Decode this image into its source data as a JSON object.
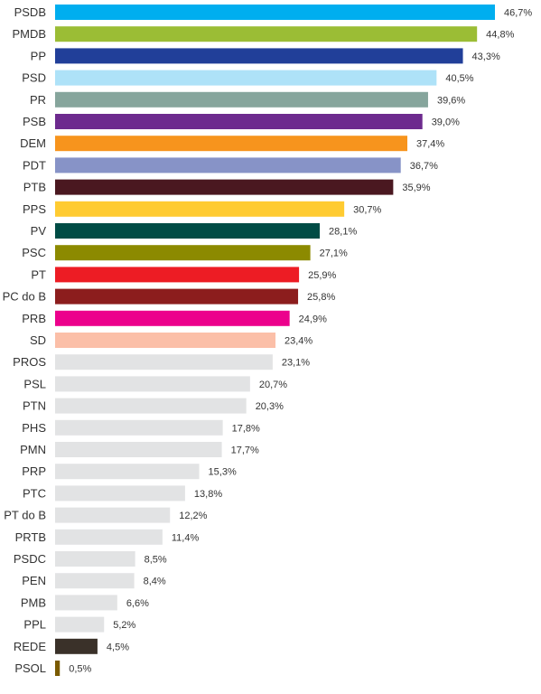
{
  "chart_data": {
    "type": "bar",
    "orientation": "horizontal",
    "title": "",
    "xlabel": "",
    "ylabel": "",
    "xlim": [
      0,
      46.7
    ],
    "grid": false,
    "legend": "none",
    "categories": [
      "PSDB",
      "PMDB",
      "PP",
      "PSD",
      "PR",
      "PSB",
      "DEM",
      "PDT",
      "PTB",
      "PPS",
      "PV",
      "PSC",
      "PT",
      "PC do B",
      "PRB",
      "SD",
      "PROS",
      "PSL",
      "PTN",
      "PHS",
      "PMN",
      "PRP",
      "PTC",
      "PT do B",
      "PRTB",
      "PSDC",
      "PEN",
      "PMB",
      "PPL",
      "REDE",
      "PSOL"
    ],
    "values": [
      46.7,
      44.8,
      43.3,
      40.5,
      39.6,
      39.0,
      37.4,
      36.7,
      35.9,
      30.7,
      28.1,
      27.1,
      25.9,
      25.8,
      24.9,
      23.4,
      23.1,
      20.7,
      20.3,
      17.8,
      17.7,
      15.3,
      13.8,
      12.2,
      11.4,
      8.5,
      8.4,
      6.6,
      5.2,
      4.5,
      0.5
    ],
    "value_labels": [
      "46,7%",
      "44,8%",
      "43,3%",
      "40,5%",
      "39,6%",
      "39,0%",
      "37,4%",
      "36,7%",
      "35,9%",
      "30,7%",
      "28,1%",
      "27,1%",
      "25,9%",
      "25,8%",
      "24,9%",
      "23,4%",
      "23,1%",
      "20,7%",
      "20,3%",
      "17,8%",
      "17,7%",
      "15,3%",
      "13,8%",
      "12,2%",
      "11,4%",
      "8,5%",
      "8,4%",
      "6,6%",
      "5,2%",
      "4,5%",
      "0,5%"
    ],
    "colors": [
      "#00aeef",
      "#9bbd35",
      "#213f99",
      "#aee2f8",
      "#86a59c",
      "#6d2a8e",
      "#f7941d",
      "#8793c7",
      "#4a1820",
      "#ffcb31",
      "#004c45",
      "#8c8a00",
      "#ed1c24",
      "#8c1d1d",
      "#ec008c",
      "#fbbfa8",
      "#e2e3e4",
      "#e2e3e4",
      "#e2e3e4",
      "#e2e3e4",
      "#e2e3e4",
      "#e2e3e4",
      "#e2e3e4",
      "#e2e3e4",
      "#e2e3e4",
      "#e2e3e4",
      "#e2e3e4",
      "#e2e3e4",
      "#e2e3e4",
      "#3a3129",
      "#7a5a00"
    ]
  }
}
